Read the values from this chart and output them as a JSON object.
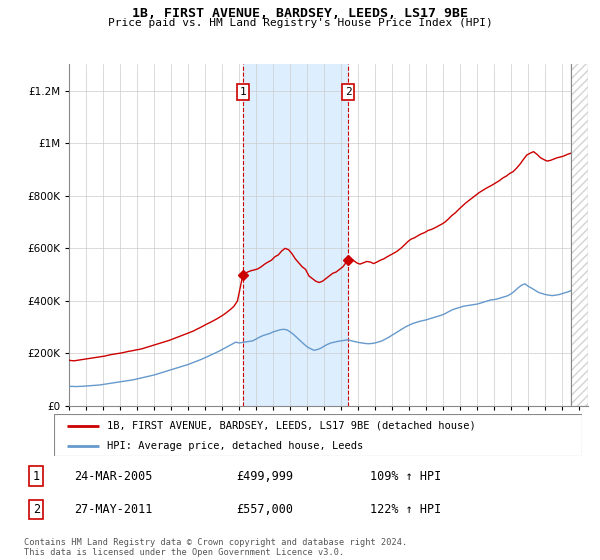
{
  "title": "1B, FIRST AVENUE, BARDSEY, LEEDS, LS17 9BE",
  "subtitle": "Price paid vs. HM Land Registry's House Price Index (HPI)",
  "legend_house": "1B, FIRST AVENUE, BARDSEY, LEEDS, LS17 9BE (detached house)",
  "legend_hpi": "HPI: Average price, detached house, Leeds",
  "sale1_date": "24-MAR-2005",
  "sale1_price": "£499,999",
  "sale1_hpi": "109% ↑ HPI",
  "sale1_year": 2005.22,
  "sale1_value": 499999,
  "sale2_date": "27-MAY-2011",
  "sale2_price": "£557,000",
  "sale2_hpi": "122% ↑ HPI",
  "sale2_year": 2011.4,
  "sale2_value": 557000,
  "footer": "Contains HM Land Registry data © Crown copyright and database right 2024.\nThis data is licensed under the Open Government Licence v3.0.",
  "house_color": "#cc0000",
  "hpi_color": "#6699cc",
  "shade_color": "#ddeeff",
  "vline_color": "#cc0000",
  "ylim": [
    0,
    1300000
  ],
  "yticks": [
    0,
    200000,
    400000,
    600000,
    800000,
    1000000,
    1200000
  ],
  "xlim_start": 1995.0,
  "xlim_end": 2025.5,
  "hatch_start": 2024.5,
  "house_years": [
    1995.0,
    1995.1,
    1995.3,
    1995.5,
    1995.7,
    1995.9,
    1996.1,
    1996.3,
    1996.5,
    1996.7,
    1996.9,
    1997.1,
    1997.3,
    1997.5,
    1997.7,
    1997.9,
    1998.1,
    1998.3,
    1998.5,
    1998.7,
    1998.9,
    1999.1,
    1999.3,
    1999.5,
    1999.7,
    1999.9,
    2000.1,
    2000.3,
    2000.5,
    2000.7,
    2000.9,
    2001.1,
    2001.3,
    2001.5,
    2001.7,
    2001.9,
    2002.1,
    2002.3,
    2002.5,
    2002.7,
    2002.9,
    2003.1,
    2003.3,
    2003.5,
    2003.7,
    2003.9,
    2004.1,
    2004.3,
    2004.5,
    2004.7,
    2004.9,
    2005.22,
    2005.5,
    2005.7,
    2005.9,
    2006.1,
    2006.3,
    2006.5,
    2006.7,
    2006.9,
    2007.1,
    2007.3,
    2007.5,
    2007.7,
    2007.9,
    2008.1,
    2008.3,
    2008.5,
    2008.7,
    2008.9,
    2009.1,
    2009.3,
    2009.5,
    2009.7,
    2009.9,
    2010.1,
    2010.3,
    2010.5,
    2010.7,
    2010.9,
    2011.1,
    2011.4,
    2011.7,
    2011.9,
    2012.1,
    2012.3,
    2012.5,
    2012.7,
    2012.9,
    2013.1,
    2013.3,
    2013.5,
    2013.7,
    2013.9,
    2014.1,
    2014.3,
    2014.5,
    2014.7,
    2014.9,
    2015.1,
    2015.3,
    2015.5,
    2015.7,
    2015.9,
    2016.1,
    2016.3,
    2016.5,
    2016.7,
    2016.9,
    2017.1,
    2017.3,
    2017.5,
    2017.7,
    2017.9,
    2018.1,
    2018.3,
    2018.5,
    2018.7,
    2018.9,
    2019.1,
    2019.3,
    2019.5,
    2019.7,
    2019.9,
    2020.1,
    2020.3,
    2020.5,
    2020.7,
    2020.9,
    2021.1,
    2021.3,
    2021.5,
    2021.7,
    2021.9,
    2022.1,
    2022.3,
    2022.5,
    2022.7,
    2022.9,
    2023.1,
    2023.3,
    2023.5,
    2023.7,
    2023.9,
    2024.1,
    2024.3,
    2024.5
  ],
  "house_values": [
    175000,
    173000,
    172000,
    174000,
    176000,
    178000,
    180000,
    182000,
    184000,
    186000,
    188000,
    190000,
    193000,
    196000,
    198000,
    200000,
    202000,
    205000,
    208000,
    210000,
    213000,
    215000,
    218000,
    222000,
    226000,
    230000,
    234000,
    238000,
    242000,
    246000,
    250000,
    255000,
    260000,
    265000,
    270000,
    275000,
    280000,
    285000,
    292000,
    298000,
    305000,
    312000,
    318000,
    325000,
    332000,
    340000,
    348000,
    358000,
    368000,
    380000,
    400000,
    499999,
    510000,
    515000,
    518000,
    522000,
    530000,
    540000,
    548000,
    555000,
    568000,
    575000,
    590000,
    600000,
    595000,
    580000,
    560000,
    545000,
    530000,
    520000,
    495000,
    485000,
    475000,
    470000,
    475000,
    485000,
    495000,
    505000,
    510000,
    520000,
    530000,
    557000,
    555000,
    545000,
    540000,
    545000,
    550000,
    548000,
    542000,
    548000,
    555000,
    560000,
    568000,
    575000,
    582000,
    590000,
    600000,
    612000,
    625000,
    635000,
    640000,
    648000,
    655000,
    660000,
    668000,
    672000,
    678000,
    685000,
    692000,
    700000,
    712000,
    725000,
    735000,
    748000,
    760000,
    772000,
    782000,
    792000,
    802000,
    812000,
    820000,
    828000,
    835000,
    842000,
    850000,
    858000,
    868000,
    875000,
    885000,
    892000,
    905000,
    920000,
    938000,
    955000,
    962000,
    968000,
    958000,
    945000,
    938000,
    932000,
    935000,
    940000,
    945000,
    948000,
    952000,
    958000,
    962000
  ],
  "hpi_years": [
    1995.0,
    1995.2,
    1995.4,
    1995.6,
    1995.8,
    1996.0,
    1996.2,
    1996.4,
    1996.6,
    1996.8,
    1997.0,
    1997.2,
    1997.4,
    1997.6,
    1997.8,
    1998.0,
    1998.2,
    1998.4,
    1998.6,
    1998.8,
    1999.0,
    1999.2,
    1999.4,
    1999.6,
    1999.8,
    2000.0,
    2000.2,
    2000.4,
    2000.6,
    2000.8,
    2001.0,
    2001.2,
    2001.4,
    2001.6,
    2001.8,
    2002.0,
    2002.2,
    2002.4,
    2002.6,
    2002.8,
    2003.0,
    2003.2,
    2003.4,
    2003.6,
    2003.8,
    2004.0,
    2004.2,
    2004.4,
    2004.6,
    2004.8,
    2005.0,
    2005.2,
    2005.4,
    2005.6,
    2005.8,
    2006.0,
    2006.2,
    2006.4,
    2006.6,
    2006.8,
    2007.0,
    2007.2,
    2007.4,
    2007.6,
    2007.8,
    2008.0,
    2008.2,
    2008.4,
    2008.6,
    2008.8,
    2009.0,
    2009.2,
    2009.4,
    2009.6,
    2009.8,
    2010.0,
    2010.2,
    2010.4,
    2010.6,
    2010.8,
    2011.0,
    2011.2,
    2011.4,
    2011.6,
    2011.8,
    2012.0,
    2012.2,
    2012.4,
    2012.6,
    2012.8,
    2013.0,
    2013.2,
    2013.4,
    2013.6,
    2013.8,
    2014.0,
    2014.2,
    2014.4,
    2014.6,
    2014.8,
    2015.0,
    2015.2,
    2015.4,
    2015.6,
    2015.8,
    2016.0,
    2016.2,
    2016.4,
    2016.6,
    2016.8,
    2017.0,
    2017.2,
    2017.4,
    2017.6,
    2017.8,
    2018.0,
    2018.2,
    2018.4,
    2018.6,
    2018.8,
    2019.0,
    2019.2,
    2019.4,
    2019.6,
    2019.8,
    2020.0,
    2020.2,
    2020.4,
    2020.6,
    2020.8,
    2021.0,
    2021.2,
    2021.4,
    2021.6,
    2021.8,
    2022.0,
    2022.2,
    2022.4,
    2022.6,
    2022.8,
    2023.0,
    2023.2,
    2023.4,
    2023.6,
    2023.8,
    2024.0,
    2024.2,
    2024.4,
    2024.5
  ],
  "hpi_values": [
    75000,
    74500,
    74000,
    74500,
    75000,
    76000,
    77000,
    78000,
    79000,
    80000,
    82000,
    84000,
    86000,
    88000,
    90000,
    92000,
    94000,
    96000,
    98000,
    100000,
    103000,
    106000,
    109000,
    112000,
    115000,
    118000,
    122000,
    126000,
    130000,
    134000,
    138000,
    142000,
    146000,
    150000,
    154000,
    158000,
    163000,
    168000,
    173000,
    178000,
    184000,
    190000,
    196000,
    202000,
    208000,
    215000,
    222000,
    229000,
    236000,
    243000,
    240000,
    242000,
    244000,
    246000,
    248000,
    255000,
    262000,
    268000,
    272000,
    276000,
    282000,
    286000,
    290000,
    292000,
    290000,
    282000,
    272000,
    260000,
    248000,
    236000,
    225000,
    218000,
    212000,
    215000,
    220000,
    228000,
    235000,
    240000,
    243000,
    246000,
    248000,
    250000,
    252000,
    248000,
    245000,
    242000,
    240000,
    238000,
    237000,
    238000,
    240000,
    244000,
    248000,
    255000,
    262000,
    270000,
    278000,
    286000,
    294000,
    302000,
    308000,
    314000,
    318000,
    322000,
    325000,
    328000,
    332000,
    336000,
    340000,
    344000,
    348000,
    355000,
    362000,
    368000,
    372000,
    376000,
    380000,
    382000,
    384000,
    386000,
    388000,
    392000,
    396000,
    400000,
    404000,
    405000,
    408000,
    412000,
    416000,
    420000,
    428000,
    438000,
    450000,
    460000,
    465000,
    455000,
    448000,
    440000,
    432000,
    428000,
    424000,
    422000,
    420000,
    422000,
    424000,
    428000,
    432000,
    436000,
    440000
  ]
}
